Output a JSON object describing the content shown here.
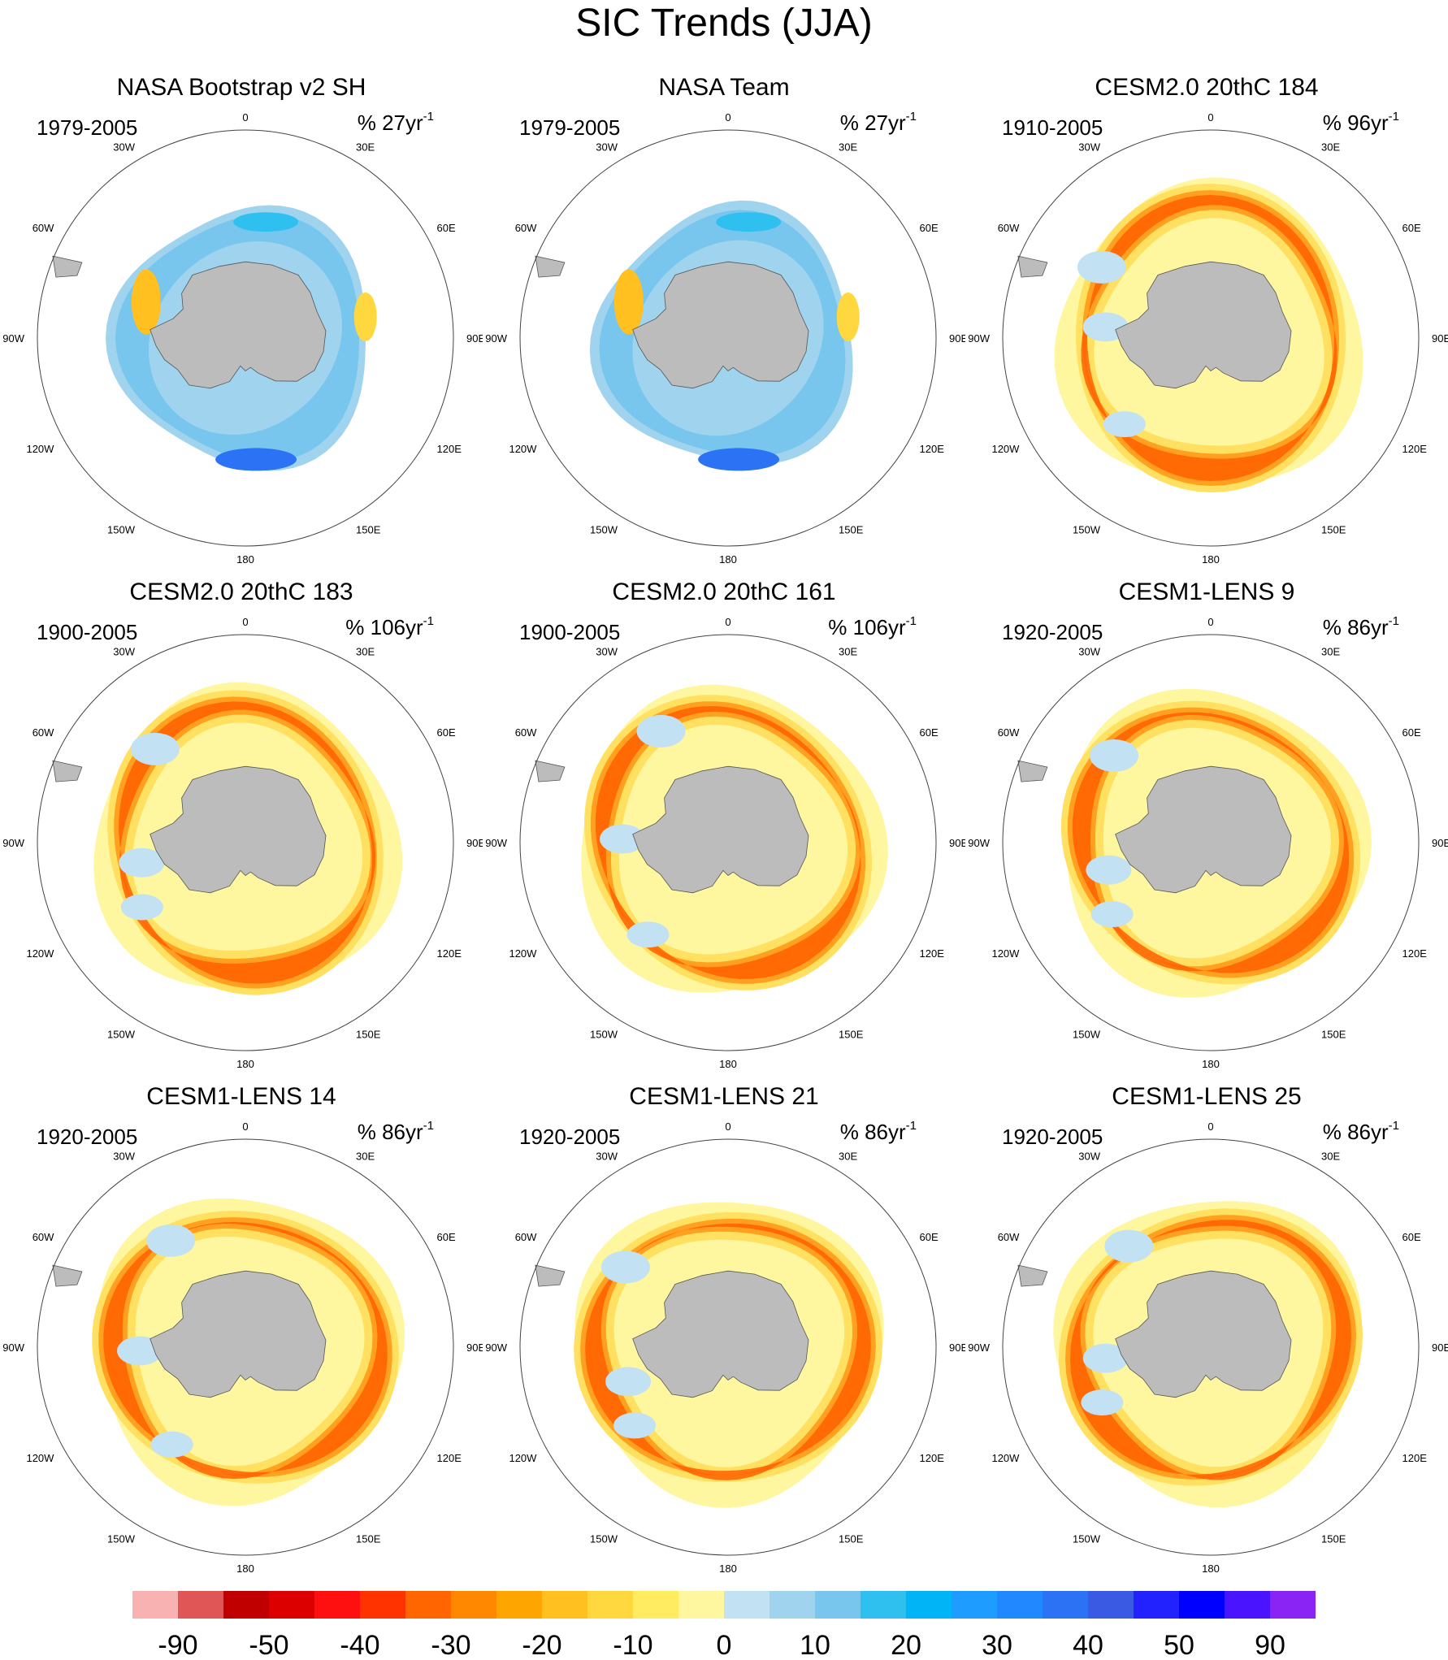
{
  "title": "SIC Trends (JJA)",
  "lon_labels": {
    "0": "0",
    "30E": "30E",
    "60E": "60E",
    "90E": "90E",
    "120E": "120E",
    "150E": "150E",
    "180": "180",
    "150W": "150W",
    "120W": "120W",
    "90W": "90W",
    "60W": "60W",
    "30W": "30W"
  },
  "panels": [
    {
      "title": "NASA Bootstrap v2 SH",
      "period": "1979-2005",
      "units_prefix": "% 27yr",
      "units_sup": "-1",
      "pattern": "obs_bootstrap"
    },
    {
      "title": "NASA Team",
      "period": "1979-2005",
      "units_prefix": "% 27yr",
      "units_sup": "-1",
      "pattern": "obs_team"
    },
    {
      "title": "CESM2.0 20thC 184",
      "period": "1910-2005",
      "units_prefix": "% 96yr",
      "units_sup": "-1",
      "pattern": "model"
    },
    {
      "title": "CESM2.0 20thC 183",
      "period": "1900-2005",
      "units_prefix": "% 106yr",
      "units_sup": "-1",
      "pattern": "model"
    },
    {
      "title": "CESM2.0 20thC 161",
      "period": "1900-2005",
      "units_prefix": "% 106yr",
      "units_sup": "-1",
      "pattern": "model"
    },
    {
      "title": "CESM1-LENS 9",
      "period": "1920-2005",
      "units_prefix": "% 86yr",
      "units_sup": "-1",
      "pattern": "model"
    },
    {
      "title": "CESM1-LENS 14",
      "period": "1920-2005",
      "units_prefix": "% 86yr",
      "units_sup": "-1",
      "pattern": "model"
    },
    {
      "title": "CESM1-LENS 21",
      "period": "1920-2005",
      "units_prefix": "% 86yr",
      "units_sup": "-1",
      "pattern": "model"
    },
    {
      "title": "CESM1-LENS 25",
      "period": "1920-2005",
      "units_prefix": "% 86yr",
      "units_sup": "-1",
      "pattern": "model"
    }
  ],
  "colorbar": {
    "colors": [
      "#f9b2b2",
      "#e05555",
      "#c00000",
      "#dd0000",
      "#ff1010",
      "#ff3300",
      "#ff6600",
      "#ff8800",
      "#ffa500",
      "#ffc020",
      "#ffd840",
      "#ffec60",
      "#fff6a0",
      "#c2e2f4",
      "#a0d4ee",
      "#78c6ee",
      "#30c0f0",
      "#00b4f6",
      "#1e9cff",
      "#2288ff",
      "#2b72f4",
      "#3a5ae4",
      "#2222ff",
      "#0000ff",
      "#4a14ff",
      "#8a24f4"
    ],
    "labels": [
      "-90",
      "-50",
      "-40",
      "-30",
      "-20",
      "-10",
      "0",
      "10",
      "20",
      "30",
      "40",
      "50",
      "90"
    ]
  }
}
